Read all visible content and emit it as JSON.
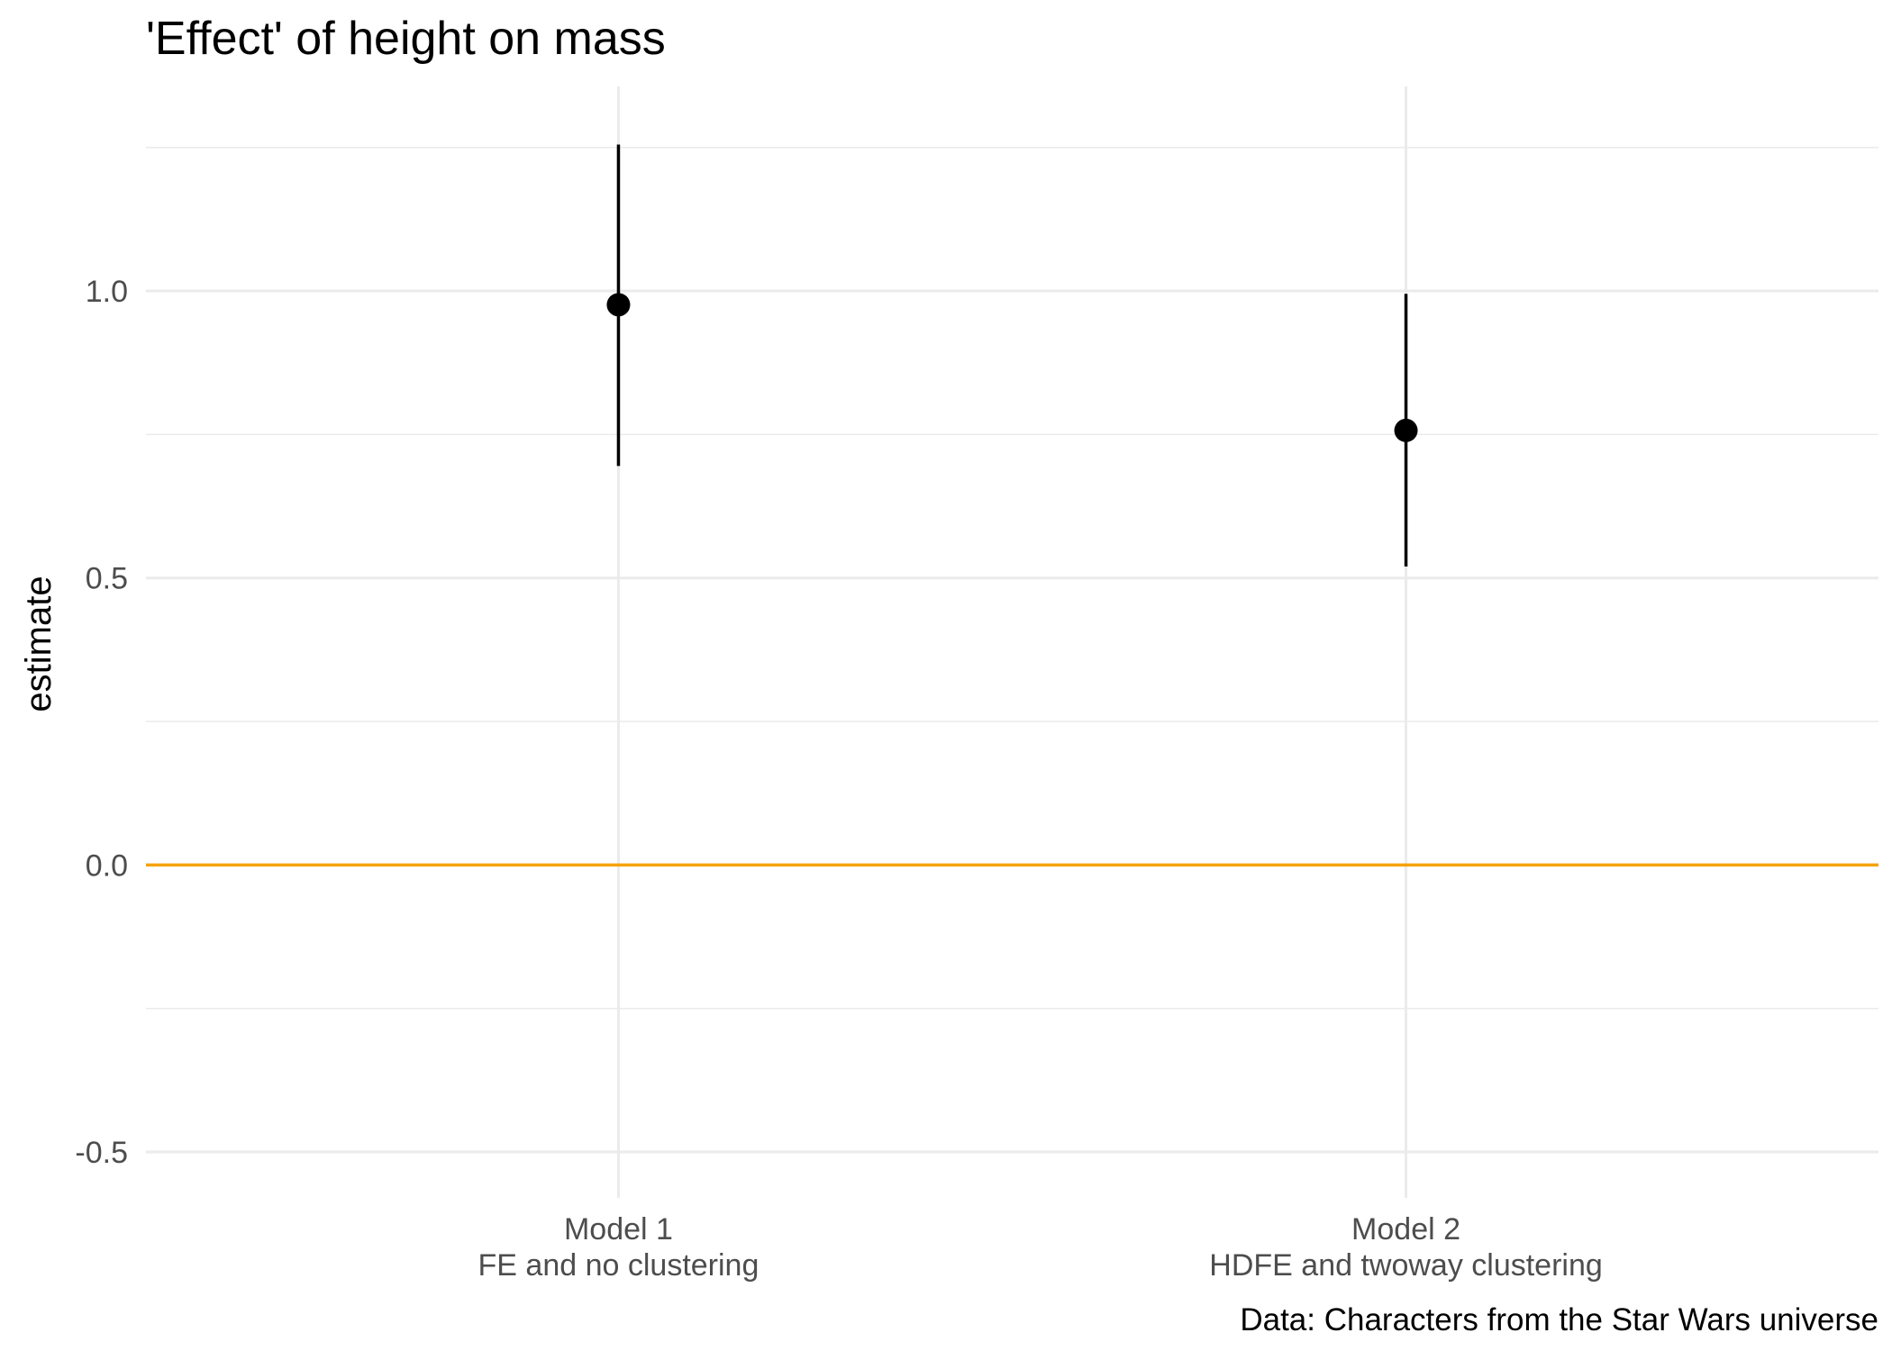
{
  "chart_data": {
    "type": "scatter",
    "title": "'Effect' of height on mass",
    "subtitle": "",
    "xlabel": "",
    "ylabel": "estimate",
    "caption": "Data: Characters from the Star Wars universe",
    "ylim": [
      -0.58,
      1.35
    ],
    "y_ticks": [
      {
        "value": -0.5,
        "label": "-0.5"
      },
      {
        "value": 0.0,
        "label": "0.0"
      },
      {
        "value": 0.5,
        "label": "0.5"
      },
      {
        "value": 1.0,
        "label": "1.0"
      }
    ],
    "y_minor_ticks": [
      -0.25,
      0.25,
      0.75,
      1.25
    ],
    "grid": true,
    "legend": "none",
    "reference_line": {
      "y": 0,
      "color": "#f5a20a"
    },
    "categories": [
      {
        "line1": "Model 1",
        "line2": "FE and no clustering"
      },
      {
        "line1": "Model 2",
        "line2": "HDFE and twoway clustering"
      }
    ],
    "points": [
      {
        "estimate": 0.976,
        "conf_low": 0.695,
        "conf_high": 1.255
      },
      {
        "estimate": 0.757,
        "conf_low": 0.52,
        "conf_high": 0.995
      }
    ],
    "colors": {
      "point": "#000000",
      "major_grid": "#ebebeb",
      "minor_grid": "#ebebeb"
    }
  }
}
